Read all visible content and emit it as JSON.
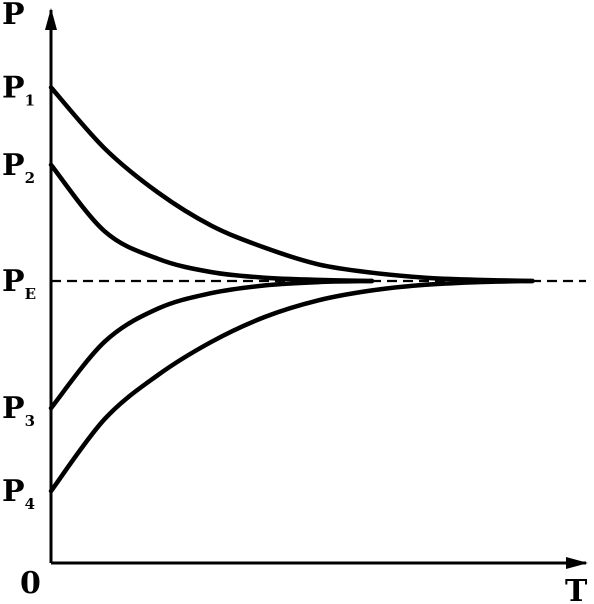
{
  "chart_data": {
    "type": "line",
    "title": "",
    "xlabel": "T",
    "ylabel": "P",
    "origin_label": "0",
    "grid": false,
    "legend": "none",
    "xlim": [
      0,
      100
    ],
    "ylim": [
      0,
      100
    ],
    "equilibrium": {
      "label_main": "P",
      "label_sub": "E",
      "value": 51,
      "style": "dashed"
    },
    "series": [
      {
        "label_main": "P",
        "label_sub": "1",
        "start": 86,
        "x": [
          0,
          10,
          20,
          30,
          40,
          50,
          60,
          70,
          80,
          90
        ],
        "y": [
          86,
          75,
          67,
          61,
          57,
          54,
          52.5,
          51.6,
          51.2,
          51
        ]
      },
      {
        "label_main": "P",
        "label_sub": "2",
        "start": 72,
        "x": [
          0,
          10,
          20,
          30,
          40,
          50,
          60
        ],
        "y": [
          72,
          60,
          55,
          52.6,
          51.6,
          51.2,
          51
        ]
      },
      {
        "label_main": "P",
        "label_sub": "3",
        "start": 28,
        "x": [
          0,
          10,
          20,
          30,
          40,
          50,
          60
        ],
        "y": [
          28,
          40,
          46,
          48.8,
          50.2,
          50.8,
          51
        ]
      },
      {
        "label_main": "P",
        "label_sub": "4",
        "start": 13,
        "x": [
          0,
          10,
          20,
          30,
          40,
          50,
          60,
          70,
          80,
          90
        ],
        "y": [
          13,
          26,
          34,
          40,
          44.5,
          47.5,
          49.3,
          50.3,
          50.8,
          51
        ]
      }
    ],
    "colors": {
      "line": "#000000",
      "background": "#ffffff"
    }
  }
}
